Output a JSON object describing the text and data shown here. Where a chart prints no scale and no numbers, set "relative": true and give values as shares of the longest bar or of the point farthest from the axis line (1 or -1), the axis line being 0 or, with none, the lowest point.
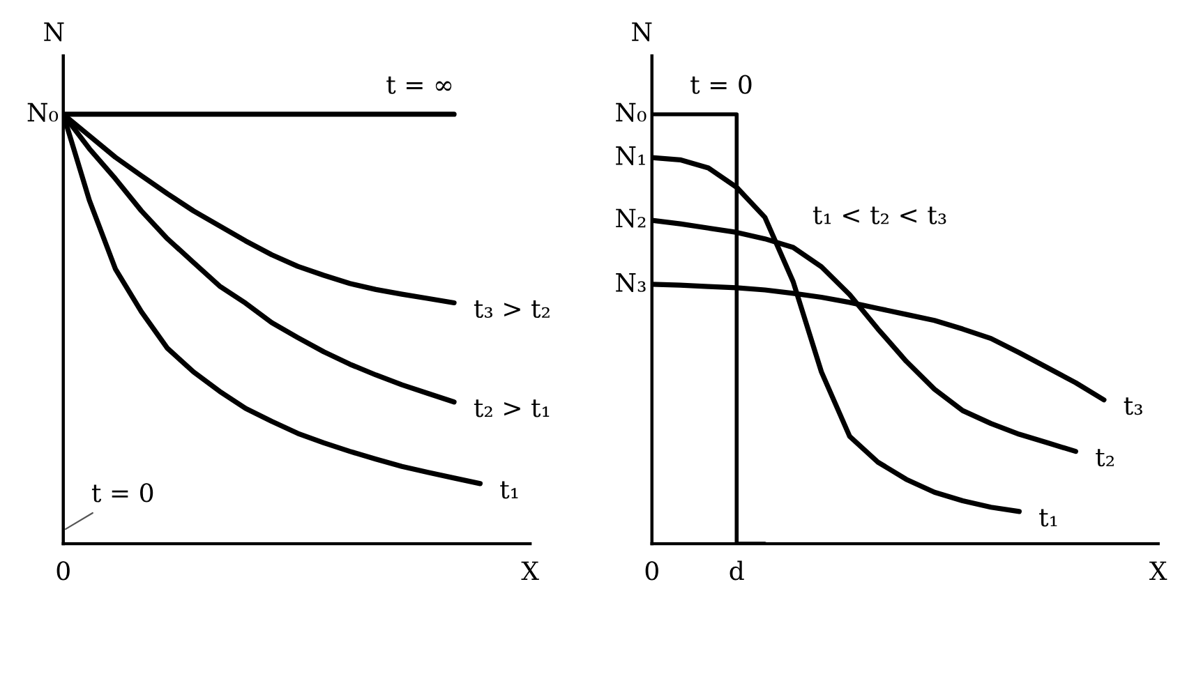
{
  "chart_data": [
    {
      "type": "line",
      "relative": true,
      "ylabel": "N",
      "xlabel": "X",
      "legend": false,
      "color": "#000000",
      "categories": [
        null,
        null,
        null,
        null,
        null,
        null,
        null,
        null,
        null,
        null,
        null,
        null,
        null,
        null,
        null,
        null,
        null
      ],
      "series": [
        {
          "name": "t = ∞",
          "values": [
            1,
            1,
            1,
            1,
            1,
            1,
            1,
            1,
            1,
            1,
            1,
            1,
            1,
            1,
            1,
            1,
            null
          ]
        },
        {
          "name": "t₃ > t₂",
          "values": [
            1,
            0.95,
            0.9,
            0.857,
            0.815,
            0.775,
            0.74,
            0.705,
            0.673,
            0.646,
            0.625,
            0.606,
            0.592,
            0.581,
            0.571,
            0.561,
            null
          ]
        },
        {
          "name": "t₂ > t₁",
          "values": [
            1,
            0.92,
            0.85,
            0.775,
            0.71,
            0.655,
            0.6,
            0.56,
            0.515,
            0.48,
            0.447,
            0.418,
            0.393,
            0.37,
            0.35,
            0.33,
            null
          ]
        },
        {
          "name": "t₁",
          "values": [
            1,
            0.8,
            0.64,
            0.54,
            0.455,
            0.4,
            0.355,
            0.315,
            0.285,
            0.257,
            0.235,
            0.215,
            0.197,
            0.18,
            0.166,
            0.153,
            0.14
          ]
        }
      ],
      "annotations": [
        "N₀",
        "0",
        "t = 0"
      ]
    },
    {
      "type": "line",
      "relative": true,
      "ylabel": "N",
      "xlabel": "X",
      "legend": false,
      "color": "#000000",
      "categories": [
        null,
        null,
        null,
        null,
        null,
        null,
        null,
        null,
        null,
        null,
        null,
        null,
        null,
        null,
        null,
        null,
        null
      ],
      "series": [
        {
          "name": "t = 0",
          "type": "step",
          "values": [
            1,
            1,
            1,
            1,
            0,
            null,
            null,
            null,
            null,
            null,
            null,
            null,
            null,
            null,
            null,
            null,
            null
          ]
        },
        {
          "name": "t₁",
          "values": [
            0.899,
            0.894,
            0.875,
            0.83,
            0.76,
            0.61,
            0.4,
            0.25,
            0.19,
            0.15,
            0.12,
            0.1,
            0.085,
            0.075,
            null,
            null,
            null
          ]
        },
        {
          "name": "t₂",
          "values": [
            0.753,
            0.745,
            0.735,
            0.725,
            0.71,
            0.69,
            0.645,
            0.58,
            0.5,
            0.425,
            0.36,
            0.31,
            0.28,
            0.255,
            0.235,
            0.215,
            null
          ]
        },
        {
          "name": "t₃",
          "values": [
            0.604,
            0.602,
            0.599,
            0.596,
            0.591,
            0.583,
            0.574,
            0.562,
            0.548,
            0.534,
            0.52,
            0.5,
            0.478,
            0.445,
            0.41,
            0.375,
            0.335
          ]
        }
      ],
      "annotations": [
        "N₀",
        "N₁",
        "N₂",
        "N₃",
        "0",
        "d",
        "t₁ < t₂ < t₃"
      ]
    }
  ]
}
